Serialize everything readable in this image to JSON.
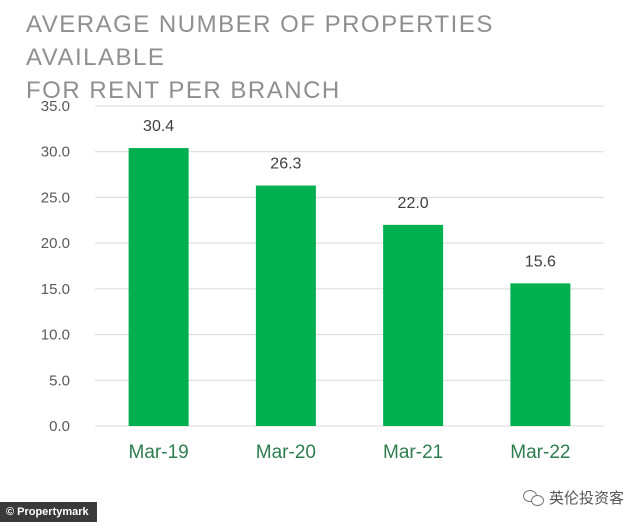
{
  "chart_data": {
    "type": "bar",
    "title_lines": [
      "AVERAGE NUMBER OF PROPERTIES AVAILABLE",
      "FOR RENT PER BRANCH"
    ],
    "categories": [
      "Mar-19",
      "Mar-20",
      "Mar-21",
      "Mar-22"
    ],
    "values": [
      30.4,
      26.3,
      22.0,
      15.6
    ],
    "value_labels": [
      "30.4",
      "26.3",
      "22.0",
      "15.6"
    ],
    "ylim": [
      0,
      35
    ],
    "yticks": [
      "0.0",
      "5.0",
      "10.0",
      "15.0",
      "20.0",
      "25.0",
      "30.0",
      "35.0"
    ],
    "grid": true,
    "bar_color": "#00b050"
  },
  "footer": {
    "credit": "Propertymark",
    "watermark": "英伦投资客"
  }
}
